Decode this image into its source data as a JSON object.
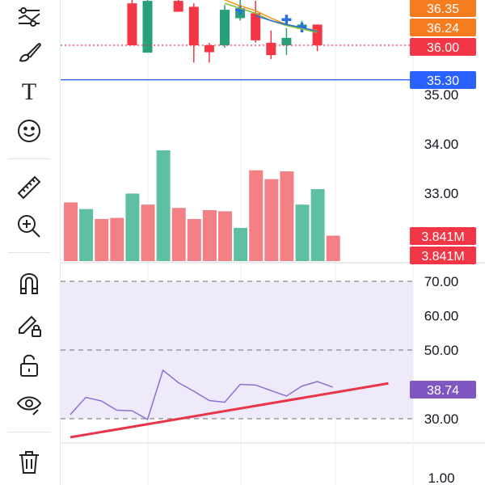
{
  "toolbar": {
    "tools": [
      {
        "name": "indicators-icon",
        "label": ""
      },
      {
        "name": "brush-icon",
        "label": ""
      },
      {
        "name": "text-icon",
        "label": "T"
      },
      {
        "name": "emoji-icon",
        "label": ""
      },
      {
        "name": "ruler-icon",
        "label": ""
      },
      {
        "name": "zoom-in-icon",
        "label": ""
      },
      {
        "name": "magnet-icon",
        "label": ""
      },
      {
        "name": "pencil-lock-icon",
        "label": ""
      },
      {
        "name": "unlock-icon",
        "label": ""
      },
      {
        "name": "eye-icon",
        "label": ""
      },
      {
        "name": "trash-icon",
        "label": ""
      }
    ]
  },
  "colors": {
    "up": "#26a17b",
    "down": "#f23645",
    "up_volume": "#5fbfa4",
    "down_volume": "#f28085",
    "rsi_line": "#8b6fd6",
    "rsi_band": "#efeaf9",
    "trend_line": "#e8354a",
    "price_line": "#3b6fe0",
    "ma_orange": "#f7931a",
    "ma_green": "#7fc23a",
    "ma_blue": "#2a6fdb",
    "last_price": "#f23645",
    "orange_label": "#f57c1f",
    "blue_label": "#2962ff",
    "purple_label": "#7e57c2"
  },
  "chart_data": [
    {
      "type": "candlestick",
      "panel": "price",
      "y_ticks": [
        "35.00",
        "34.00",
        "33.00"
      ],
      "y_tick_values": [
        35,
        34,
        33
      ],
      "ylim": [
        32.2,
        36.9
      ],
      "candles": [
        {
          "x": 4,
          "open": 36.85,
          "close": 36.0,
          "high": 36.95,
          "low": 36.0
        },
        {
          "x": 5,
          "open": 35.85,
          "close": 36.9,
          "high": 36.95,
          "low": 35.85
        },
        {
          "x": 7,
          "open": 36.9,
          "close": 36.68,
          "high": 36.95,
          "low": 36.68
        },
        {
          "x": 8,
          "open": 36.78,
          "close": 36.0,
          "high": 36.85,
          "low": 35.65
        },
        {
          "x": 9,
          "open": 36.0,
          "close": 35.86,
          "high": 36.05,
          "low": 35.65
        },
        {
          "x": 10,
          "open": 36.0,
          "close": 36.72,
          "high": 36.82,
          "low": 35.95
        },
        {
          "x": 11,
          "open": 36.55,
          "close": 36.75,
          "high": 36.95,
          "low": 36.5
        },
        {
          "x": 12,
          "open": 36.65,
          "close": 36.1,
          "high": 36.9,
          "low": 36.05
        },
        {
          "x": 13,
          "open": 36.05,
          "close": 35.8,
          "high": 36.3,
          "low": 35.72
        },
        {
          "x": 14,
          "open": 36.0,
          "close": 36.15,
          "high": 36.35,
          "low": 35.8
        },
        {
          "x": 15,
          "open": 36.35,
          "close": 36.42,
          "high": 36.5,
          "low": 36.3
        },
        {
          "x": 16,
          "open": 36.42,
          "close": 36.0,
          "high": 36.42,
          "low": 35.88
        }
      ],
      "markers": [
        {
          "x": 11,
          "y": 36.72
        },
        {
          "x": 14,
          "y": 36.52
        },
        {
          "x": 15,
          "y": 36.36
        }
      ],
      "moving_averages": [
        {
          "color_key": "ma_orange",
          "points": [
            [
              10,
              36.92
            ],
            [
              11,
              36.8
            ],
            [
              12,
              36.7
            ],
            [
              13,
              36.55
            ],
            [
              14,
              36.42
            ],
            [
              15,
              36.35
            ],
            [
              16,
              36.3
            ]
          ]
        },
        {
          "color_key": "ma_green",
          "points": [
            [
              10,
              36.85
            ],
            [
              11,
              36.75
            ],
            [
              12,
              36.65
            ],
            [
              13,
              36.5
            ],
            [
              14,
              36.4
            ],
            [
              15,
              36.33
            ],
            [
              16,
              36.26
            ]
          ]
        },
        {
          "color_key": "ma_blue",
          "points": [
            [
              12,
              36.6
            ],
            [
              13,
              36.5
            ],
            [
              14,
              36.42
            ],
            [
              15,
              36.36
            ],
            [
              16,
              36.28
            ]
          ]
        }
      ],
      "price_lines": [
        {
          "value": 36.0,
          "label": "36.00",
          "style": "dotted",
          "color_key": "last_price"
        },
        {
          "value": 35.3,
          "label": "35.30",
          "style": "solid",
          "color_key": "blue_label"
        }
      ],
      "price_labels": [
        {
          "value": 36.35,
          "label": "36.35",
          "color_key": "orange_label"
        },
        {
          "value": 36.24,
          "label": "36.24",
          "color_key": "orange_label"
        }
      ]
    },
    {
      "type": "bar",
      "panel": "volume",
      "ylim": [
        0,
        1
      ],
      "bars": [
        {
          "x": 0,
          "value": 0.53,
          "dir": "down"
        },
        {
          "x": 1,
          "value": 0.47,
          "dir": "up"
        },
        {
          "x": 2,
          "value": 0.38,
          "dir": "down"
        },
        {
          "x": 3,
          "value": 0.39,
          "dir": "down"
        },
        {
          "x": 4,
          "value": 0.61,
          "dir": "up"
        },
        {
          "x": 5,
          "value": 0.51,
          "dir": "down"
        },
        {
          "x": 6,
          "value": 1.0,
          "dir": "up"
        },
        {
          "x": 7,
          "value": 0.48,
          "dir": "down"
        },
        {
          "x": 8,
          "value": 0.38,
          "dir": "down"
        },
        {
          "x": 9,
          "value": 0.46,
          "dir": "down"
        },
        {
          "x": 10,
          "value": 0.45,
          "dir": "down"
        },
        {
          "x": 11,
          "value": 0.3,
          "dir": "up"
        },
        {
          "x": 12,
          "value": 0.82,
          "dir": "down"
        },
        {
          "x": 13,
          "value": 0.74,
          "dir": "down"
        },
        {
          "x": 14,
          "value": 0.81,
          "dir": "down"
        },
        {
          "x": 15,
          "value": 0.51,
          "dir": "up"
        },
        {
          "x": 16,
          "value": 0.65,
          "dir": "up"
        },
        {
          "x": 17,
          "value": 0.23,
          "dir": "down"
        }
      ],
      "labels": [
        "3.841M",
        "3.841M"
      ]
    },
    {
      "type": "line",
      "panel": "rsi",
      "y_ticks": [
        "70.00",
        "60.00",
        "50.00",
        "30.00"
      ],
      "y_tick_values": [
        70,
        60,
        50,
        30
      ],
      "ylim": [
        26,
        73
      ],
      "band": [
        30,
        70
      ],
      "dashed_levels": [
        70,
        50,
        30
      ],
      "series": [
        {
          "x": 0,
          "y": 31.2
        },
        {
          "x": 1,
          "y": 36.2
        },
        {
          "x": 2,
          "y": 35.2
        },
        {
          "x": 3,
          "y": 32.5
        },
        {
          "x": 4,
          "y": 32.3
        },
        {
          "x": 5,
          "y": 29.8
        },
        {
          "x": 6,
          "y": 44.1
        },
        {
          "x": 7,
          "y": 40.5
        },
        {
          "x": 8,
          "y": 38.0
        },
        {
          "x": 9,
          "y": 35.3
        },
        {
          "x": 10,
          "y": 34.8
        },
        {
          "x": 11,
          "y": 40.0
        },
        {
          "x": 12,
          "y": 39.8
        },
        {
          "x": 13,
          "y": 38.2
        },
        {
          "x": 14,
          "y": 36.6
        },
        {
          "x": 15,
          "y": 39.5
        },
        {
          "x": 16,
          "y": 40.8
        },
        {
          "x": 17,
          "y": 39.2
        }
      ],
      "trend_line": [
        [
          0,
          24.6
        ],
        [
          20.6,
          40.3
        ]
      ],
      "value_label": "38.74"
    },
    {
      "type": "line",
      "panel": "bottom",
      "y_ticks": [
        "1.00"
      ],
      "series": []
    }
  ]
}
